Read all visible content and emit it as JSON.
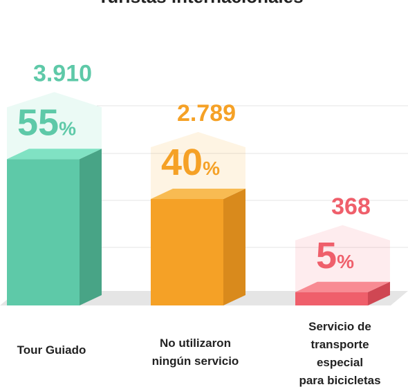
{
  "chart_data": {
    "type": "bar3d",
    "title": "Turistas internacionales",
    "categories": [
      [
        "Tour Guiado"
      ],
      [
        "No utilizaron",
        "ningún servicio"
      ],
      [
        "Servicio de",
        "transporte",
        "especial",
        "para bicicletas"
      ]
    ],
    "values": [
      3910,
      2789,
      368
    ],
    "value_labels": [
      "3.910",
      "2.789",
      "368"
    ],
    "percents": [
      55,
      40,
      5
    ],
    "percent_unit": "%",
    "colors": [
      {
        "front": "#5ec9a8",
        "side": "#48a486",
        "top": "#80e2c3"
      },
      {
        "front": "#f5a126",
        "side": "#d98a1c",
        "top": "#f8bb52"
      },
      {
        "front": "#ef5f6b",
        "side": "#cf4753",
        "top": "#f88b93"
      }
    ],
    "ylim": [
      0,
      60
    ]
  }
}
